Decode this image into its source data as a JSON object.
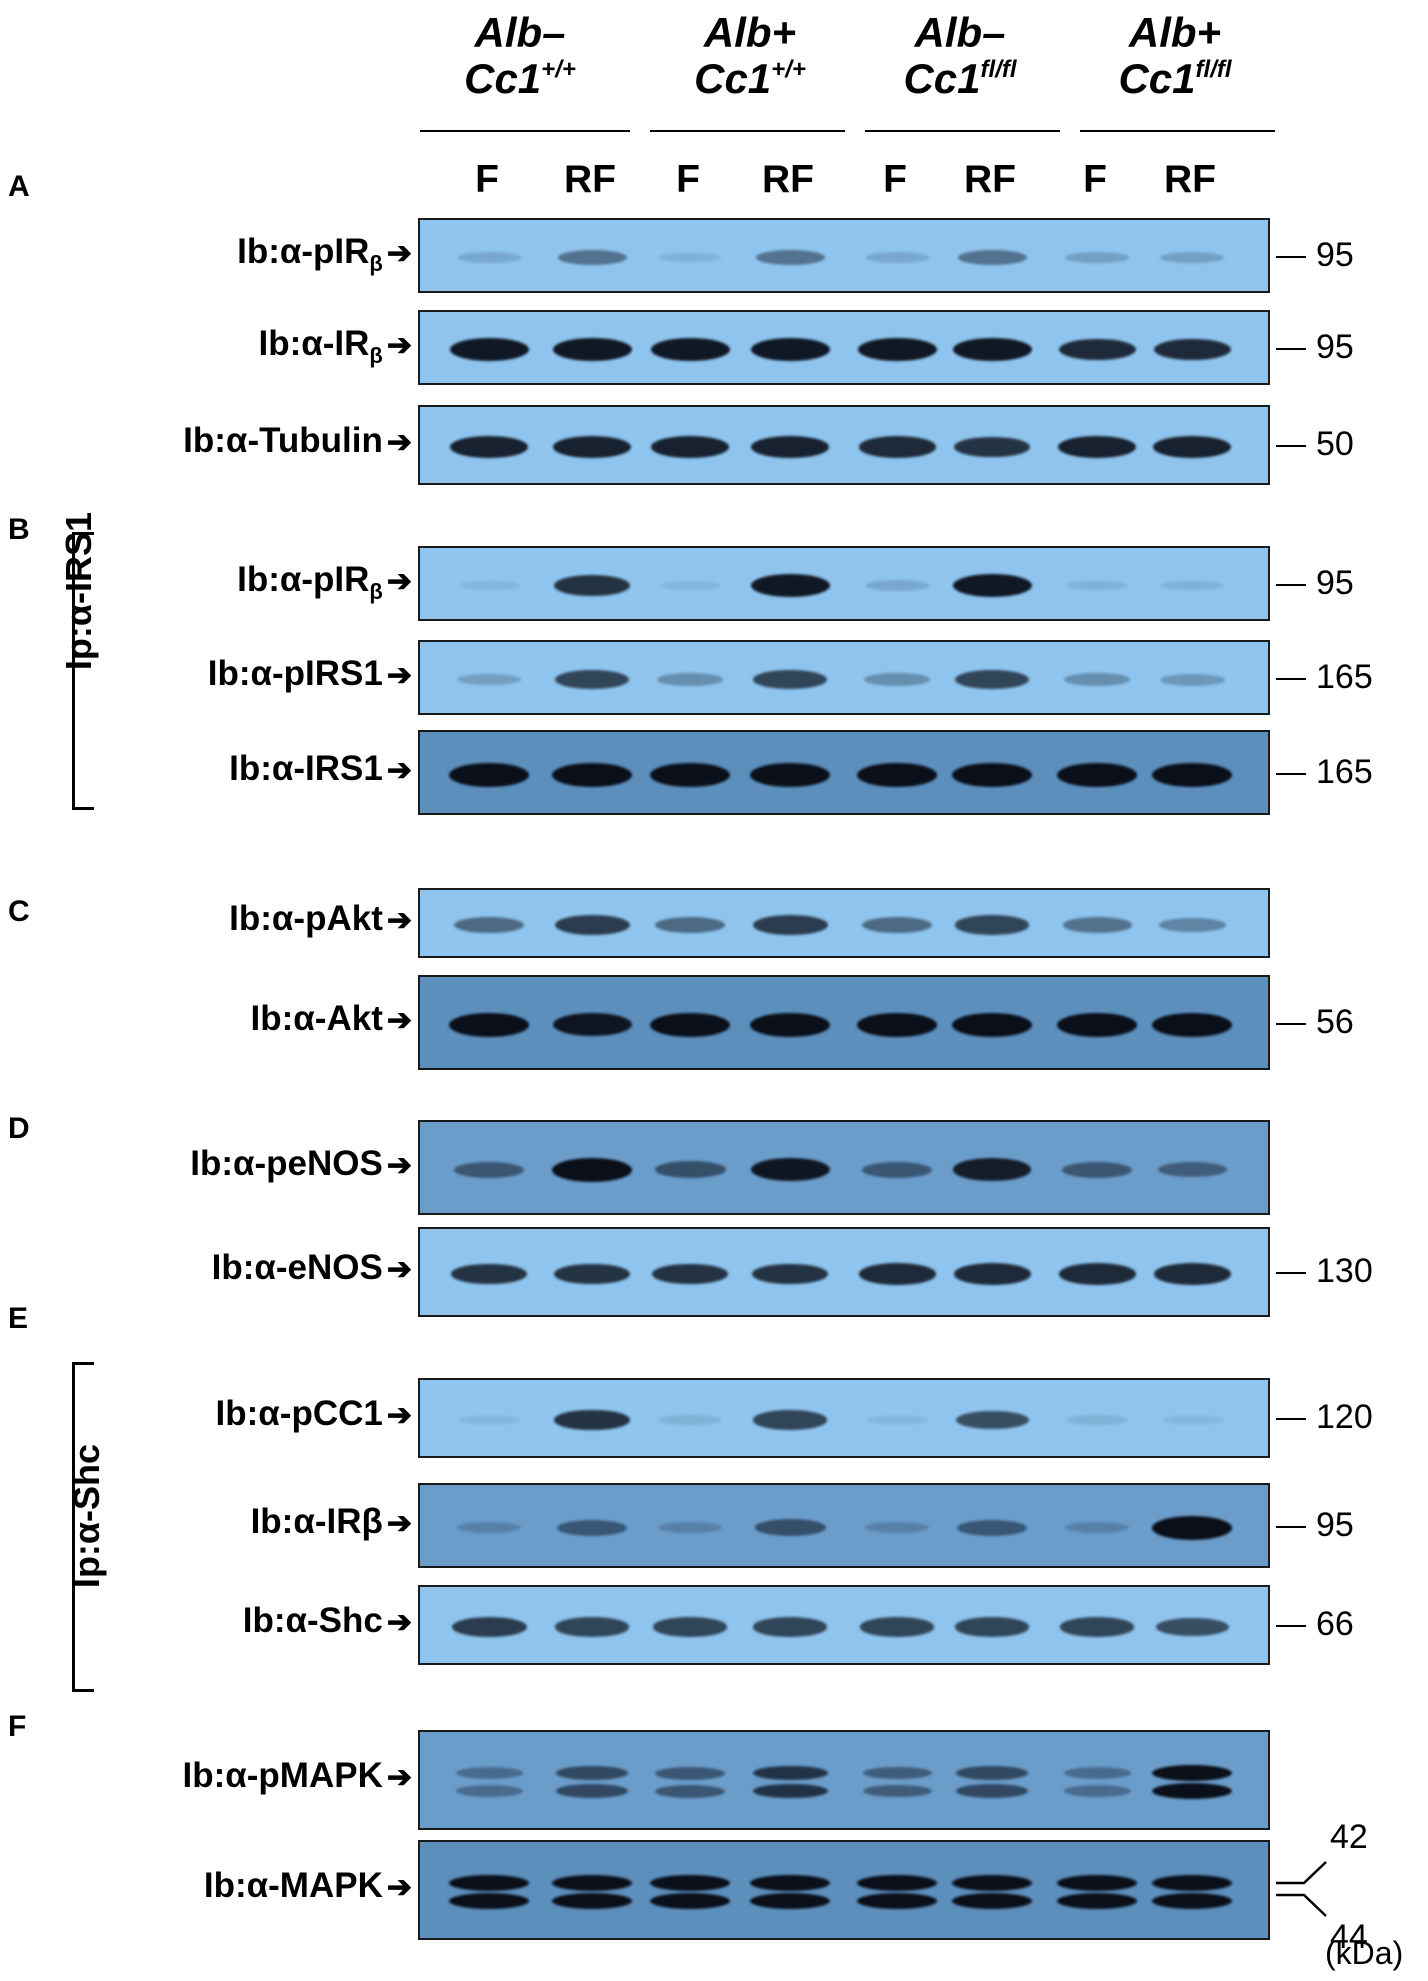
{
  "groups": [
    {
      "line1": "Alb–",
      "line2": "Cc1",
      "sup": "+/+"
    },
    {
      "line1": "Alb+",
      "line2": "Cc1",
      "sup": "+/+"
    },
    {
      "line1": "Alb–",
      "line2": "Cc1",
      "sup": "fl/fl"
    },
    {
      "line1": "Alb+",
      "line2": "Cc1",
      "sup": "fl/fl"
    }
  ],
  "lanes": [
    "F",
    "RF",
    "F",
    "RF",
    "F",
    "RF",
    "F",
    "RF"
  ],
  "ip_labels": {
    "B": "Ip:α-IRS1",
    "E": "Ip:α-Shc"
  },
  "kda_unit": "(kDa)",
  "panels": [
    {
      "letter": "A",
      "blots": [
        {
          "label": "Ib:α-pIR",
          "sub": "β",
          "kda": "95",
          "bg": "#8ec4ee",
          "intensity": [
            0.15,
            0.45,
            0.1,
            0.45,
            0.15,
            0.45,
            0.2,
            0.2
          ]
        },
        {
          "label": "Ib:α-IR",
          "sub": "β",
          "kda": "95",
          "bg": "#8ec4ee",
          "intensity": [
            0.95,
            0.95,
            0.95,
            0.95,
            0.95,
            0.95,
            0.85,
            0.85
          ]
        },
        {
          "label": "Ib:α-Tubulin",
          "sub": "",
          "kda": "50",
          "bg": "#8ec4ee",
          "intensity": [
            0.9,
            0.9,
            0.9,
            0.9,
            0.85,
            0.8,
            0.9,
            0.9
          ]
        }
      ]
    },
    {
      "letter": "B",
      "blots": [
        {
          "label": "Ib:α-pIR",
          "sub": "β",
          "kda": "95",
          "bg": "#8ec4ee",
          "intensity": [
            0.05,
            0.8,
            0.05,
            0.95,
            0.15,
            0.95,
            0.1,
            0.1
          ]
        },
        {
          "label": "Ib:α-pIRS1",
          "sub": "",
          "kda": "165",
          "bg": "#8ec4ee",
          "intensity": [
            0.2,
            0.7,
            0.3,
            0.7,
            0.3,
            0.7,
            0.3,
            0.25
          ]
        },
        {
          "label": "Ib:α-IRS1",
          "sub": "",
          "kda": "165",
          "bg": "#5d8fbd",
          "intensity": [
            1,
            1,
            1,
            1,
            1,
            1,
            1,
            1
          ]
        }
      ]
    },
    {
      "letter": "C",
      "blots": [
        {
          "label": "Ib:α-pAkt",
          "sub": "",
          "kda": "",
          "bg": "#8ec4ee",
          "intensity": [
            0.5,
            0.75,
            0.5,
            0.75,
            0.5,
            0.7,
            0.45,
            0.35
          ]
        },
        {
          "label": "Ib:α-Akt",
          "sub": "",
          "kda": "56",
          "bg": "#5d8fbd",
          "intensity": [
            1,
            0.95,
            1,
            1,
            1,
            1,
            1,
            1
          ]
        }
      ]
    },
    {
      "letter": "D",
      "blots": [
        {
          "label": "Ib:α-peNOS",
          "sub": "",
          "kda": "",
          "bg": "#6b9dcb",
          "intensity": [
            0.5,
            1,
            0.55,
            0.95,
            0.5,
            0.9,
            0.5,
            0.45
          ]
        },
        {
          "label": "Ib:α-eNOS",
          "sub": "",
          "kda": "130",
          "bg": "#8ec4ee",
          "intensity": [
            0.8,
            0.8,
            0.8,
            0.8,
            0.85,
            0.85,
            0.85,
            0.85
          ]
        }
      ]
    },
    {
      "letter": "E",
      "blots": [
        {
          "label": "Ib:α-pCC1",
          "sub": "",
          "kda": "120",
          "bg": "#8ec4ee",
          "intensity": [
            0.05,
            0.8,
            0.1,
            0.7,
            0.05,
            0.65,
            0.1,
            0.05
          ]
        },
        {
          "label": "Ib:α-IRβ",
          "sub": "",
          "kda": "95",
          "bg": "#6b9dcb",
          "intensity": [
            0.2,
            0.5,
            0.2,
            0.55,
            0.2,
            0.5,
            0.2,
            1
          ]
        },
        {
          "label": "Ib:α-Shc",
          "sub": "",
          "kda": "66",
          "bg": "#8ec4ee",
          "intensity": [
            0.75,
            0.7,
            0.7,
            0.7,
            0.7,
            0.7,
            0.7,
            0.65
          ]
        }
      ]
    },
    {
      "letter": "F",
      "blots": [
        {
          "label": "Ib:α-pMAPK",
          "sub": "",
          "kda": "",
          "bg": "#6b9dcb",
          "intensity": [
            0.35,
            0.6,
            0.5,
            0.75,
            0.45,
            0.6,
            0.35,
            1
          ],
          "doublet": true
        },
        {
          "label": "Ib:α-MAPK",
          "sub": "",
          "kda": "",
          "kda_top": "42",
          "kda_bottom": "44",
          "bg": "#5d8fbd",
          "intensity": [
            1,
            1,
            1,
            1,
            1,
            1,
            1,
            1
          ],
          "doublet": true
        }
      ]
    }
  ]
}
